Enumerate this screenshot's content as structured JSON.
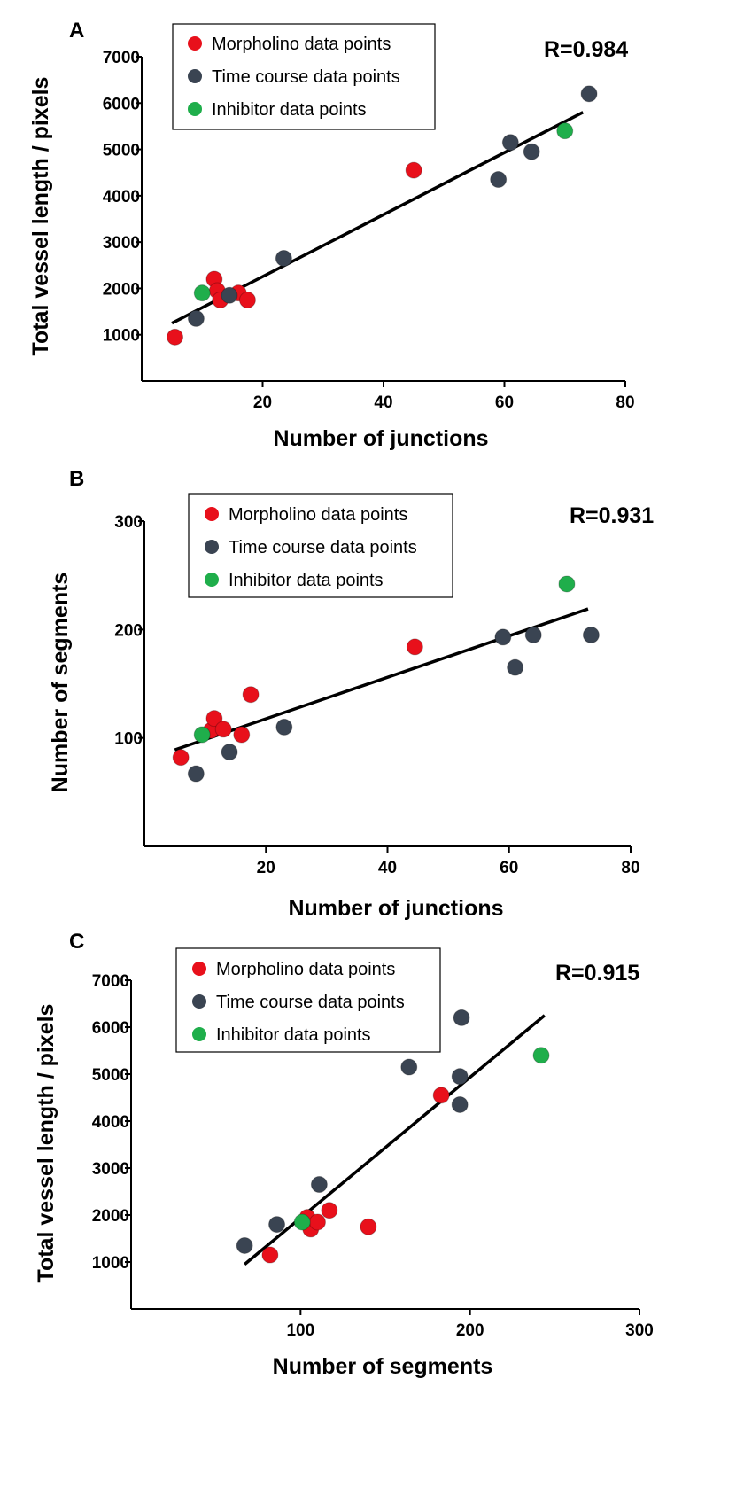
{
  "colors": {
    "morpholino": "#e8101b",
    "time_course": "#3a4452",
    "inhibitor": "#1fae4b"
  },
  "chart_data": [
    {
      "type": "scatter",
      "panel": "A",
      "r_label": "R=0.984",
      "xlabel": "Number of junctions",
      "ylabel": "Total vessel length / pixels",
      "xlim": [
        0,
        80
      ],
      "ylim": [
        0,
        7000
      ],
      "x_ticks": [
        20,
        40,
        60,
        80
      ],
      "y_ticks": [
        1000,
        2000,
        3000,
        4000,
        5000,
        6000,
        7000
      ],
      "legend_position": "top-left",
      "series": [
        {
          "name": "Morpholino data points",
          "color_key": "morpholino",
          "points": [
            [
              5.5,
              950
            ],
            [
              12,
              2200
            ],
            [
              12.5,
              1950
            ],
            [
              13,
              1750
            ],
            [
              16,
              1900
            ],
            [
              17.5,
              1750
            ],
            [
              45,
              4550
            ]
          ]
        },
        {
          "name": "Time course data points",
          "color_key": "time_course",
          "points": [
            [
              9,
              1350
            ],
            [
              14.5,
              1850
            ],
            [
              23.5,
              2650
            ],
            [
              59,
              4350
            ],
            [
              61,
              5150
            ],
            [
              64.5,
              4950
            ],
            [
              74,
              6200
            ]
          ]
        },
        {
          "name": "Inhibitor data points",
          "color_key": "inhibitor",
          "points": [
            [
              10,
              1900
            ],
            [
              70,
              5400
            ]
          ]
        }
      ],
      "fit_line": [
        [
          5,
          1250
        ],
        [
          73,
          5800
        ]
      ]
    },
    {
      "type": "scatter",
      "panel": "B",
      "r_label": "R=0.931",
      "xlabel": "Number of junctions",
      "ylabel": "Number of segments",
      "xlim": [
        0,
        80
      ],
      "ylim": [
        0,
        300
      ],
      "x_ticks": [
        20,
        40,
        60,
        80
      ],
      "y_ticks": [
        100,
        200,
        300
      ],
      "legend_position": "top-left",
      "series": [
        {
          "name": "Morpholino data points",
          "color_key": "morpholino",
          "points": [
            [
              6,
              82
            ],
            [
              11,
              107
            ],
            [
              11.5,
              118
            ],
            [
              13,
              108
            ],
            [
              16,
              103
            ],
            [
              17.5,
              140
            ],
            [
              44.5,
              184
            ]
          ]
        },
        {
          "name": "Time course data points",
          "color_key": "time_course",
          "points": [
            [
              8.5,
              67
            ],
            [
              14,
              87
            ],
            [
              23,
              110
            ],
            [
              59,
              193
            ],
            [
              61,
              165
            ],
            [
              64,
              195
            ],
            [
              73.5,
              195
            ]
          ]
        },
        {
          "name": "Inhibitor data points",
          "color_key": "inhibitor",
          "points": [
            [
              9.5,
              103
            ],
            [
              69.5,
              242
            ]
          ]
        }
      ],
      "fit_line": [
        [
          5,
          89
        ],
        [
          73,
          219
        ]
      ]
    },
    {
      "type": "scatter",
      "panel": "C",
      "r_label": "R=0.915",
      "xlabel": "Number of segments",
      "ylabel": "Total vessel length / pixels",
      "xlim": [
        0,
        300
      ],
      "ylim": [
        0,
        7000
      ],
      "x_ticks": [
        100,
        200,
        300
      ],
      "y_ticks": [
        1000,
        2000,
        3000,
        4000,
        5000,
        6000,
        7000
      ],
      "legend_position": "top-left",
      "series": [
        {
          "name": "Morpholino data points",
          "color_key": "morpholino",
          "points": [
            [
              82,
              1150
            ],
            [
              104,
              1950
            ],
            [
              106,
              1700
            ],
            [
              110,
              1850
            ],
            [
              117,
              2100
            ],
            [
              140,
              1750
            ],
            [
              183,
              4550
            ]
          ]
        },
        {
          "name": "Time course data points",
          "color_key": "time_course",
          "points": [
            [
              67,
              1350
            ],
            [
              86,
              1800
            ],
            [
              111,
              2650
            ],
            [
              164,
              5150
            ],
            [
              194,
              4950
            ],
            [
              195,
              6200
            ],
            [
              194,
              4350
            ]
          ]
        },
        {
          "name": "Inhibitor data points",
          "color_key": "inhibitor",
          "points": [
            [
              101,
              1850
            ],
            [
              242,
              5400
            ]
          ]
        }
      ],
      "fit_line": [
        [
          67,
          950
        ],
        [
          244,
          6250
        ]
      ]
    }
  ]
}
